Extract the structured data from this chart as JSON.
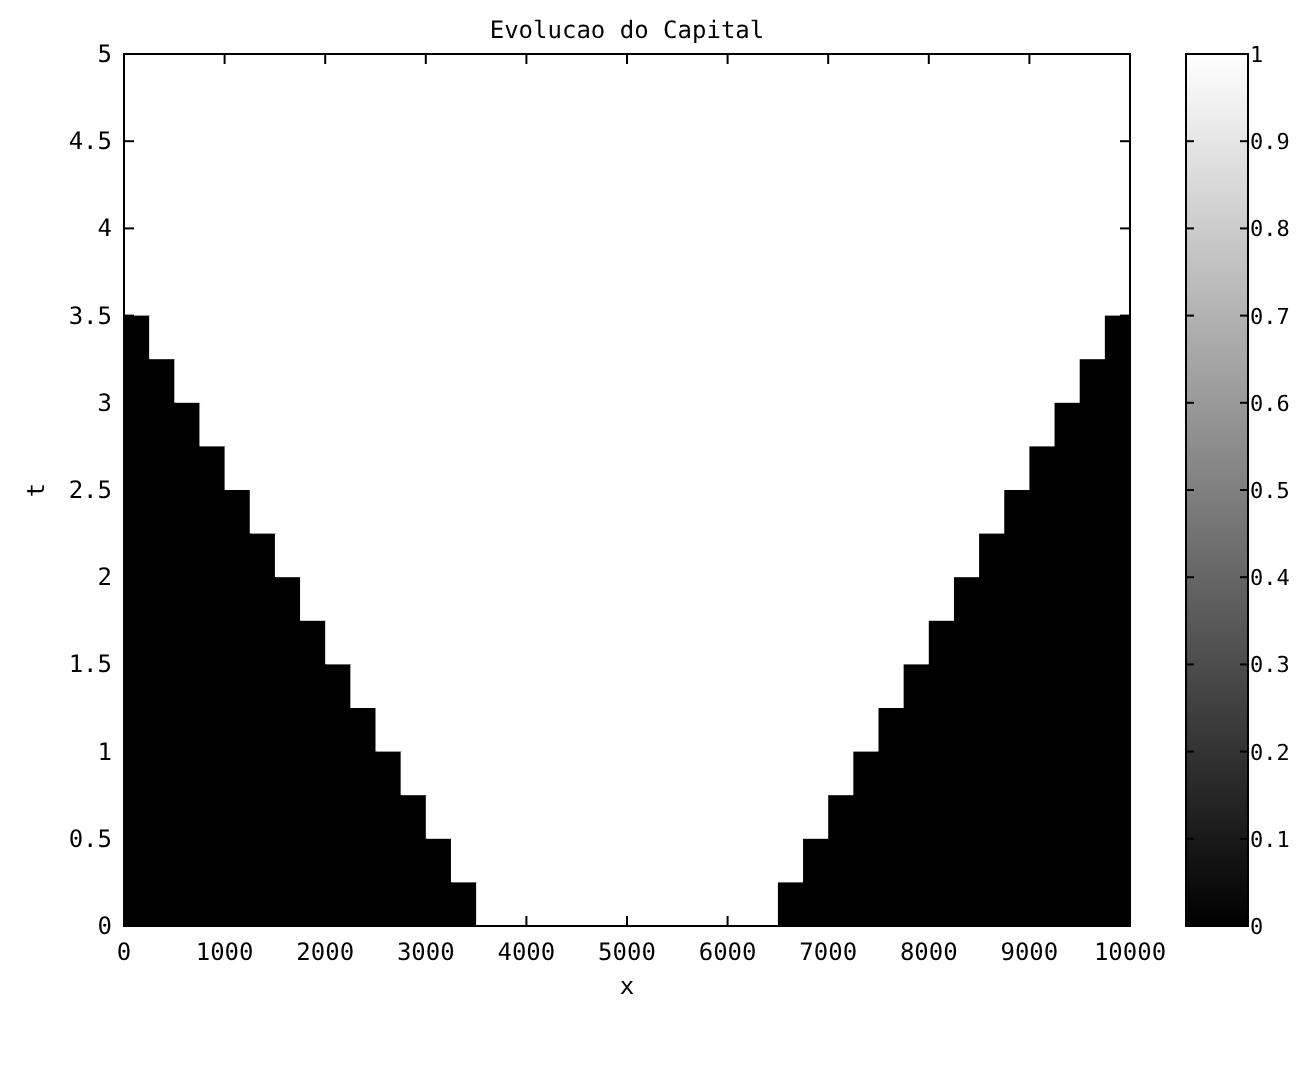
{
  "chart_data": {
    "type": "heatmap",
    "title": "Evolucao do Capital",
    "xlabel": "x",
    "ylabel": "t",
    "xlim": [
      0,
      10000
    ],
    "xticks": [
      0,
      1000,
      2000,
      3000,
      4000,
      5000,
      6000,
      7000,
      8000,
      9000,
      10000
    ],
    "ylim": [
      0,
      5
    ],
    "yticks": [
      0,
      0.5,
      1,
      1.5,
      2,
      2.5,
      3,
      3.5,
      4,
      4.5,
      5
    ],
    "clim": [
      0,
      1
    ],
    "cticks": [
      0,
      0.1,
      0.2,
      0.3,
      0.4,
      0.5,
      0.6,
      0.7,
      0.8,
      0.9,
      1
    ],
    "grid": false,
    "cells": [
      [
        1,
        1,
        1,
        1,
        1,
        1,
        1,
        1,
        1,
        1,
        1,
        1,
        1,
        1,
        1,
        1,
        1,
        1,
        1,
        1,
        1,
        1,
        1,
        1,
        1,
        1,
        1,
        1,
        1,
        1,
        1,
        1,
        1,
        1,
        1,
        1,
        1,
        1,
        1,
        1
      ],
      [
        1,
        1,
        1,
        1,
        1,
        1,
        1,
        1,
        1,
        1,
        1,
        1,
        1,
        1,
        1,
        1,
        1,
        1,
        1,
        1,
        1,
        1,
        1,
        1,
        1,
        1,
        1,
        1,
        1,
        1,
        1,
        1,
        1,
        1,
        1,
        1,
        1,
        1,
        1,
        1
      ],
      [
        1,
        1,
        1,
        1,
        1,
        1,
        1,
        1,
        1,
        1,
        1,
        1,
        1,
        1,
        1,
        1,
        1,
        1,
        1,
        1,
        1,
        1,
        1,
        1,
        1,
        1,
        1,
        1,
        1,
        1,
        1,
        1,
        1,
        1,
        1,
        1,
        1,
        1,
        1,
        1
      ],
      [
        1,
        1,
        1,
        1,
        1,
        1,
        1,
        1,
        1,
        1,
        1,
        1,
        1,
        1,
        1,
        1,
        1,
        1,
        1,
        1,
        1,
        1,
        1,
        1,
        1,
        1,
        1,
        1,
        1,
        1,
        1,
        1,
        1,
        1,
        1,
        1,
        1,
        1,
        1,
        1
      ],
      [
        1,
        1,
        1,
        1,
        1,
        1,
        1,
        1,
        1,
        1,
        1,
        1,
        1,
        1,
        1,
        1,
        1,
        1,
        1,
        1,
        1,
        1,
        1,
        1,
        1,
        1,
        1,
        1,
        1,
        1,
        1,
        1,
        1,
        1,
        1,
        1,
        1,
        1,
        1,
        1
      ],
      [
        1,
        1,
        1,
        1,
        1,
        1,
        1,
        1,
        1,
        1,
        1,
        1,
        1,
        1,
        1,
        1,
        1,
        1,
        1,
        1,
        1,
        1,
        1,
        1,
        1,
        1,
        1,
        1,
        1,
        1,
        1,
        1,
        1,
        1,
        1,
        1,
        1,
        1,
        1,
        1
      ],
      [
        0,
        1,
        1,
        1,
        1,
        1,
        1,
        1,
        1,
        1,
        1,
        1,
        1,
        1,
        1,
        1,
        1,
        1,
        1,
        1,
        1,
        1,
        1,
        1,
        1,
        1,
        1,
        1,
        1,
        1,
        1,
        1,
        1,
        1,
        1,
        1,
        1,
        1,
        1,
        0
      ],
      [
        0,
        0,
        1,
        1,
        1,
        1,
        1,
        1,
        1,
        1,
        1,
        1,
        1,
        1,
        1,
        1,
        1,
        1,
        1,
        1,
        1,
        1,
        1,
        1,
        1,
        1,
        1,
        1,
        1,
        1,
        1,
        1,
        1,
        1,
        1,
        1,
        1,
        1,
        0,
        0
      ],
      [
        0,
        0,
        0,
        1,
        1,
        1,
        1,
        1,
        1,
        1,
        1,
        1,
        1,
        1,
        1,
        1,
        1,
        1,
        1,
        1,
        1,
        1,
        1,
        1,
        1,
        1,
        1,
        1,
        1,
        1,
        1,
        1,
        1,
        1,
        1,
        1,
        1,
        0,
        0,
        0
      ],
      [
        0,
        0,
        0,
        0,
        1,
        1,
        1,
        1,
        1,
        1,
        1,
        1,
        1,
        1,
        1,
        1,
        1,
        1,
        1,
        1,
        1,
        1,
        1,
        1,
        1,
        1,
        1,
        1,
        1,
        1,
        1,
        1,
        1,
        1,
        1,
        1,
        0,
        0,
        0,
        0
      ],
      [
        0,
        0,
        0,
        0,
        0,
        1,
        1,
        1,
        1,
        1,
        1,
        1,
        1,
        1,
        1,
        1,
        1,
        1,
        1,
        1,
        1,
        1,
        1,
        1,
        1,
        1,
        1,
        1,
        1,
        1,
        1,
        1,
        1,
        1,
        1,
        0,
        0,
        0,
        0,
        0
      ],
      [
        0,
        0,
        0,
        0,
        0,
        0,
        1,
        1,
        1,
        1,
        1,
        1,
        1,
        1,
        1,
        1,
        1,
        1,
        1,
        1,
        1,
        1,
        1,
        1,
        1,
        1,
        1,
        1,
        1,
        1,
        1,
        1,
        1,
        1,
        0,
        0,
        0,
        0,
        0,
        0
      ],
      [
        0,
        0,
        0,
        0,
        0,
        0,
        0,
        1,
        1,
        1,
        1,
        1,
        1,
        1,
        1,
        1,
        1,
        1,
        1,
        1,
        1,
        1,
        1,
        1,
        1,
        1,
        1,
        1,
        1,
        1,
        1,
        1,
        1,
        0,
        0,
        0,
        0,
        0,
        0,
        0
      ],
      [
        0,
        0,
        0,
        0,
        0,
        0,
        0,
        0,
        1,
        1,
        1,
        1,
        1,
        1,
        1,
        1,
        1,
        1,
        1,
        1,
        1,
        1,
        1,
        1,
        1,
        1,
        1,
        1,
        1,
        1,
        1,
        1,
        0,
        0,
        0,
        0,
        0,
        0,
        0,
        0
      ],
      [
        0,
        0,
        0,
        0,
        0,
        0,
        0,
        0,
        0,
        1,
        1,
        1,
        1,
        1,
        1,
        1,
        1,
        1,
        1,
        1,
        1,
        1,
        1,
        1,
        1,
        1,
        1,
        1,
        1,
        1,
        1,
        0,
        0,
        0,
        0,
        0,
        0,
        0,
        0,
        0
      ],
      [
        0,
        0,
        0,
        0,
        0,
        0,
        0,
        0,
        0,
        0,
        1,
        1,
        1,
        1,
        1,
        1,
        1,
        1,
        1,
        1,
        1,
        1,
        1,
        1,
        1,
        1,
        1,
        1,
        1,
        1,
        0,
        0,
        0,
        0,
        0,
        0,
        0,
        0,
        0,
        0
      ],
      [
        0,
        0,
        0,
        0,
        0,
        0,
        0,
        0,
        0,
        0,
        0,
        1,
        1,
        1,
        1,
        1,
        1,
        1,
        1,
        1,
        1,
        1,
        1,
        1,
        1,
        1,
        1,
        1,
        1,
        0,
        0,
        0,
        0,
        0,
        0,
        0,
        0,
        0,
        0,
        0
      ],
      [
        0,
        0,
        0,
        0,
        0,
        0,
        0,
        0,
        0,
        0,
        0,
        0,
        1,
        1,
        1,
        1,
        1,
        1,
        1,
        1,
        1,
        1,
        1,
        1,
        1,
        1,
        1,
        1,
        0,
        0,
        0,
        0,
        0,
        0,
        0,
        0,
        0,
        0,
        0,
        0
      ],
      [
        0,
        0,
        0,
        0,
        0,
        0,
        0,
        0,
        0,
        0,
        0,
        0,
        0,
        1,
        1,
        1,
        1,
        1,
        1,
        1,
        1,
        1,
        1,
        1,
        1,
        1,
        1,
        0,
        0,
        0,
        0,
        0,
        0,
        0,
        0,
        0,
        0,
        0,
        0,
        0
      ],
      [
        0,
        0,
        0,
        0,
        0,
        0,
        0,
        0,
        0,
        0,
        0,
        0,
        0,
        0,
        1,
        1,
        1,
        1,
        1,
        1,
        1,
        1,
        1,
        1,
        1,
        1,
        0,
        0,
        0,
        0,
        0,
        0,
        0,
        0,
        0,
        0,
        0,
        0,
        0,
        0
      ]
    ]
  }
}
